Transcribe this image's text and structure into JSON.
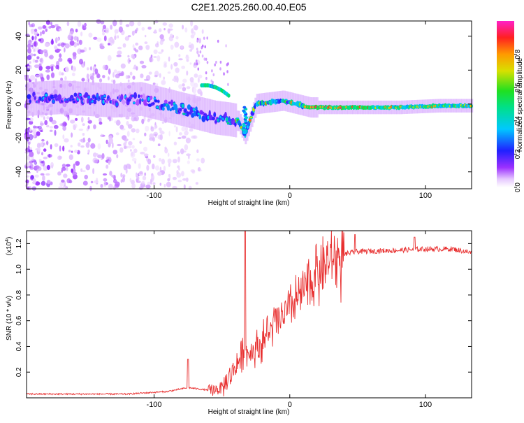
{
  "title": "C2E1.2025.260.00.40.E05",
  "chart_data": [
    {
      "type": "heatmap",
      "name": "spectrogram",
      "xlabel": "Height of straight line (km)",
      "ylabel": "Frequency (Hz)",
      "xlim": [
        -194,
        134
      ],
      "ylim": [
        -50,
        49
      ],
      "xticks": [
        -100,
        0,
        100
      ],
      "yticks": [
        -40,
        -20,
        0,
        20,
        40
      ],
      "colorbar": {
        "label": "Normalized spectral amplitude",
        "range": [
          0,
          1
        ],
        "ticks": [
          0.0,
          0.2,
          0.4,
          0.6,
          0.8
        ]
      },
      "ridge": {
        "description": "dominant frequency track",
        "x": [
          -194,
          -170,
          -150,
          -130,
          -110,
          -95,
          -85,
          -75,
          -65,
          -55,
          -45,
          -38,
          -33,
          -25,
          -15,
          -5,
          5,
          15,
          40,
          80,
          110,
          134
        ],
        "y": [
          3,
          4,
          3,
          2,
          3,
          0,
          -2,
          -4,
          -6,
          -8,
          -9,
          -10,
          -18,
          0,
          1,
          2,
          0,
          -2,
          -2,
          -2,
          -1,
          -1
        ]
      },
      "secondary_ridge": {
        "x": [
          -65,
          -60,
          -55,
          -50,
          -45
        ],
        "y": [
          11,
          11,
          10,
          8,
          5
        ]
      }
    },
    {
      "type": "line",
      "name": "snr",
      "xlabel": "Height of straight line (km)",
      "ylabel": "SNR (10 * v/v)",
      "scale_label": "(x10",
      "scale_exp": "4",
      "scale_close": ")",
      "xlim": [
        -194,
        134
      ],
      "ylim": [
        0,
        1.3
      ],
      "xticks": [
        -100,
        0,
        100
      ],
      "yticks": [
        0.2,
        0.4,
        0.6,
        0.8,
        1.0,
        1.2
      ],
      "series_color": "#e83030",
      "envelope": {
        "x": [
          -194,
          -120,
          -90,
          -75,
          -60,
          -50,
          -40,
          -33,
          -30,
          -20,
          -10,
          0,
          10,
          20,
          30,
          40,
          50,
          80,
          100,
          120,
          134
        ],
        "y": [
          0.03,
          0.03,
          0.05,
          0.08,
          0.06,
          0.08,
          0.25,
          0.4,
          0.35,
          0.45,
          0.6,
          0.7,
          0.85,
          1.0,
          1.08,
          1.12,
          1.14,
          1.15,
          1.16,
          1.16,
          1.13
        ]
      },
      "spikes": [
        {
          "x": -33,
          "y": 1.3
        },
        {
          "x": -75,
          "y": 0.3
        },
        {
          "x": 48,
          "y": 1.27
        },
        {
          "x": 92,
          "y": 1.25
        }
      ]
    }
  ]
}
